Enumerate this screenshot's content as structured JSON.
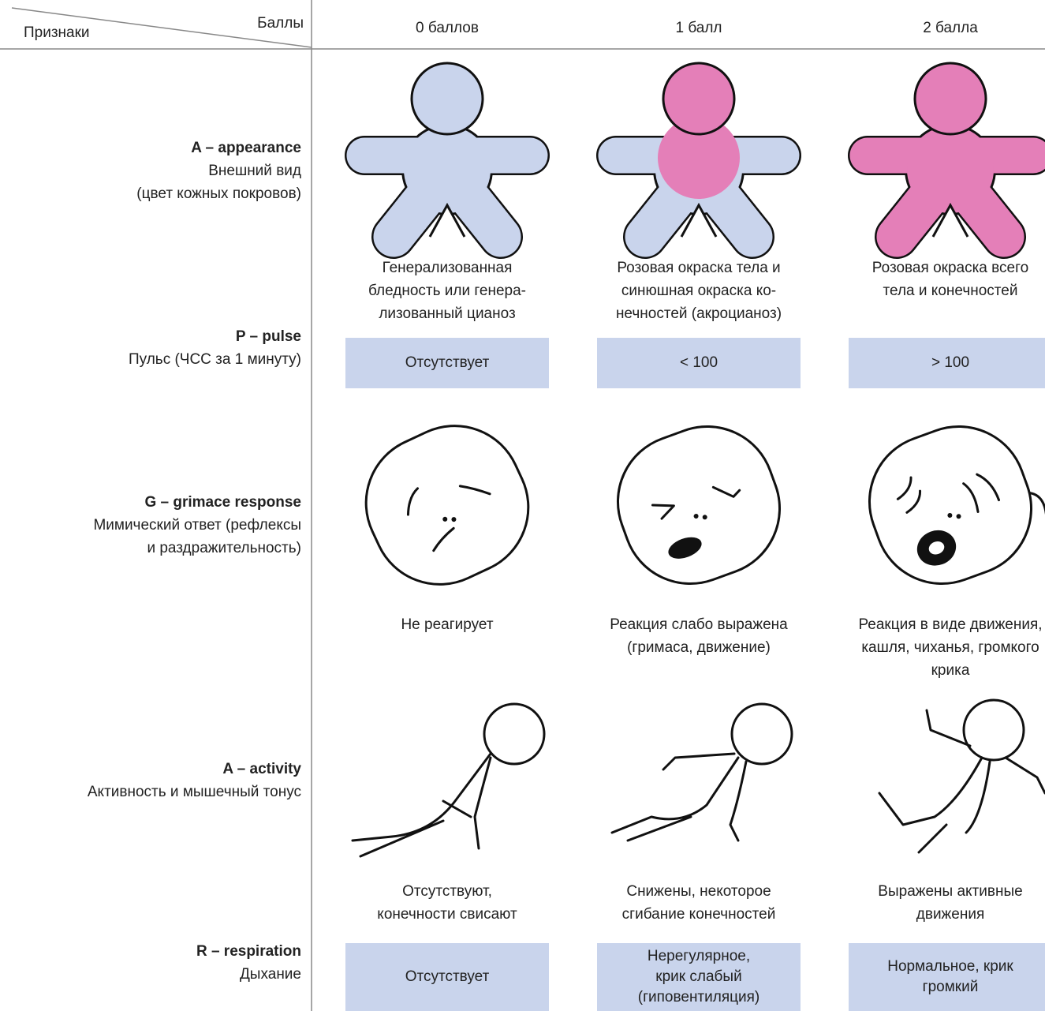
{
  "header": {
    "points_label": "Баллы",
    "signs_label": "Признаки",
    "scores": [
      "0 баллов",
      "1 балл",
      "2 балла"
    ]
  },
  "rows": [
    {
      "code": "A – appearance",
      "description": [
        "Внешний вид",
        "(цвет кожных покровов)"
      ],
      "cells": [
        [
          "Генерализованная",
          "бледность или генера-",
          "лизованный цианоз"
        ],
        [
          "Розовая окраска тела и",
          "синюшная окраска ко-",
          "нечностей (акроцианоз)"
        ],
        [
          "Розовая окраска всего",
          "тела и конечностей"
        ]
      ]
    },
    {
      "code": "P – pulse",
      "description": [
        "Пульс (ЧСС за 1 минуту)"
      ],
      "cells": [
        [
          "Отсутствует"
        ],
        [
          "< 100"
        ],
        [
          "> 100"
        ]
      ]
    },
    {
      "code": "G – grimace response",
      "description": [
        "Мимический ответ (рефлексы",
        "и раздражительность)"
      ],
      "cells": [
        [
          "Не реагирует"
        ],
        [
          "Реакция слабо выражена",
          "(гримаса, движение)"
        ],
        [
          "Реакция в виде движения,",
          "кашля, чиханья, громкого",
          "крика"
        ]
      ]
    },
    {
      "code": "A – activity",
      "description": [
        "Активность и мышечный тонус"
      ],
      "cells": [
        [
          "Отсутствуют,",
          "конечности свисают"
        ],
        [
          "Снижены, некоторое",
          "сгибание конечностей"
        ],
        [
          "Выражены активные",
          "движения"
        ]
      ]
    },
    {
      "code": "R – respiration",
      "description": [
        "Дыхание"
      ],
      "cells": [
        [
          "Отсутствует"
        ],
        [
          "Нерегулярное,",
          "крик слабый",
          "(гиповентиляция)"
        ],
        [
          "Нормальное, крик",
          "громкий"
        ]
      ]
    }
  ]
}
